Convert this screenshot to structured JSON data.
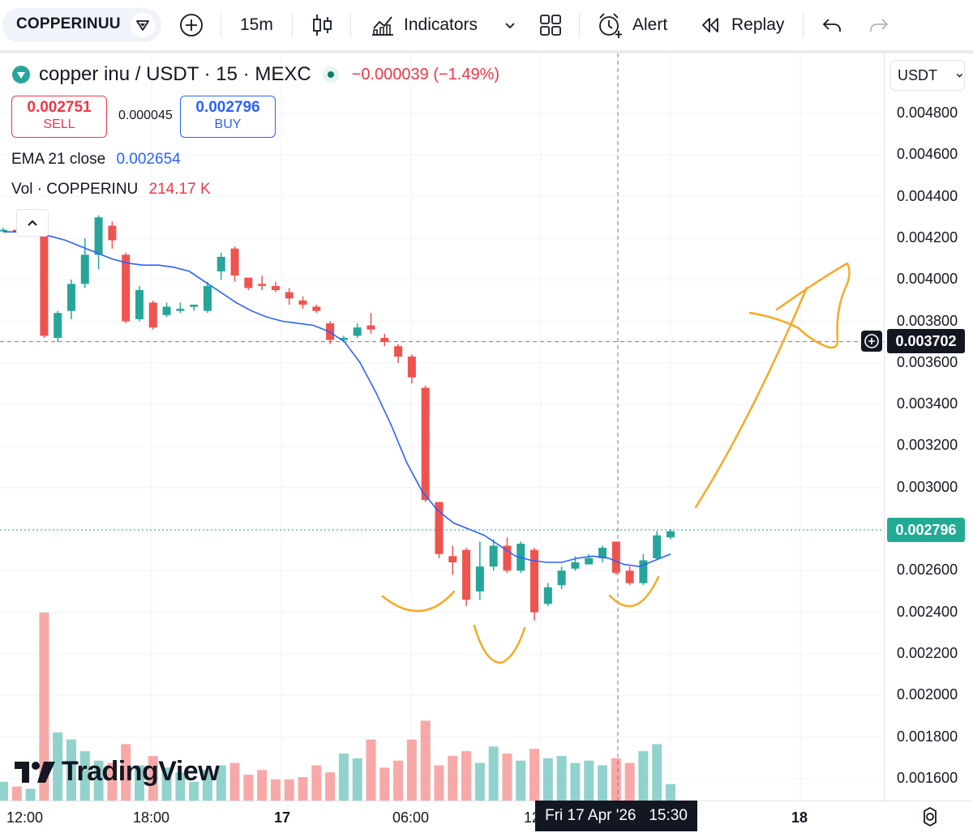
{
  "toolbar": {
    "symbol": "COPPERINUU",
    "interval": "15m",
    "indicators_label": "Indicators",
    "alert_label": "Alert",
    "replay_label": "Replay"
  },
  "legend": {
    "symbol_name": "copper inu",
    "pair_info": " / USDT · 15 · MEXC",
    "change": "−0.000039 (−1.49%)",
    "sell_price": "0.002751",
    "sell_label": "SELL",
    "spread": "0.000045",
    "buy_price": "0.002796",
    "buy_label": "BUY",
    "ema_label": "EMA 21 close",
    "ema_value": "0.002654",
    "vol_label": "Vol · COPPERINU",
    "vol_value": "214.17 K"
  },
  "price_scale": {
    "currency": "USDT",
    "ticks": [
      "0.004800",
      "0.004600",
      "0.004400",
      "0.004200",
      "0.004000",
      "0.003800",
      "0.003600",
      "0.003400",
      "0.003200",
      "0.003000",
      "0.002600",
      "0.002400",
      "0.002200",
      "0.002000",
      "0.001800",
      "0.001600"
    ],
    "crosshair_price": "0.003702",
    "last_price": "0.002796"
  },
  "time_axis": {
    "ticks": [
      "12:00",
      "18:00",
      "17",
      "06:00",
      "12",
      "18"
    ],
    "crosshair_time": "Fri 17 Apr '26   15:30"
  },
  "branding": {
    "logo_text": "TradingView"
  },
  "colors": {
    "up": "#26a69a",
    "down": "#ef5350",
    "ema": "#2962ff",
    "annotation": "#f7a928"
  },
  "chart_data": {
    "type": "candlestick",
    "ema": [
      0.00423,
      0.00423,
      0.00422,
      0.00421,
      0.00419,
      0.00416,
      0.00413,
      0.0041,
      0.00408,
      0.00407,
      0.00407,
      0.00406,
      0.00404,
      0.00399,
      0.00394,
      0.00389,
      0.00385,
      0.00382,
      0.0038,
      0.00379,
      0.00378,
      0.00375,
      0.0037,
      0.0036,
      0.00346,
      0.0033,
      0.00312,
      0.00298,
      0.00289,
      0.00283,
      0.0028,
      0.00277,
      0.00272,
      0.00267,
      0.00265,
      0.00264,
      0.00264,
      0.00266,
      0.00267,
      0.00266,
      0.00263,
      0.00262,
      0.00265,
      0.00268
    ],
    "candles": [
      {
        "o": 0.00424,
        "h": 0.00425,
        "l": 0.00423,
        "c": 0.00424
      },
      {
        "o": 0.00424,
        "h": 0.00425,
        "l": 0.00423,
        "c": 0.00423
      },
      {
        "o": 0.00424,
        "h": 0.00424,
        "l": 0.00424,
        "c": 0.00424
      },
      {
        "o": 0.00424,
        "h": 0.00424,
        "l": 0.00372,
        "c": 0.00373
      },
      {
        "o": 0.00372,
        "h": 0.00385,
        "l": 0.0037,
        "c": 0.00384
      },
      {
        "o": 0.00385,
        "h": 0.004,
        "l": 0.00381,
        "c": 0.00398
      },
      {
        "o": 0.00398,
        "h": 0.0042,
        "l": 0.00396,
        "c": 0.00412
      },
      {
        "o": 0.00412,
        "h": 0.00431,
        "l": 0.00405,
        "c": 0.0043
      },
      {
        "o": 0.00426,
        "h": 0.00428,
        "l": 0.00415,
        "c": 0.00419
      },
      {
        "o": 0.00412,
        "h": 0.00413,
        "l": 0.00379,
        "c": 0.0038
      },
      {
        "o": 0.00381,
        "h": 0.00397,
        "l": 0.0038,
        "c": 0.00395
      },
      {
        "o": 0.00389,
        "h": 0.0039,
        "l": 0.00376,
        "c": 0.00377
      },
      {
        "o": 0.00383,
        "h": 0.00389,
        "l": 0.00382,
        "c": 0.00387
      },
      {
        "o": 0.00385,
        "h": 0.00389,
        "l": 0.00384,
        "c": 0.00386
      },
      {
        "o": 0.00387,
        "h": 0.00388,
        "l": 0.00385,
        "c": 0.00388
      },
      {
        "o": 0.00385,
        "h": 0.00399,
        "l": 0.00384,
        "c": 0.00397
      },
      {
        "o": 0.00404,
        "h": 0.00413,
        "l": 0.004,
        "c": 0.00411
      },
      {
        "o": 0.00415,
        "h": 0.00416,
        "l": 0.00399,
        "c": 0.00402
      },
      {
        "o": 0.00401,
        "h": 0.00401,
        "l": 0.00395,
        "c": 0.00396
      },
      {
        "o": 0.00398,
        "h": 0.00402,
        "l": 0.00395,
        "c": 0.00397
      },
      {
        "o": 0.00397,
        "h": 0.00399,
        "l": 0.00394,
        "c": 0.00395
      },
      {
        "o": 0.00394,
        "h": 0.00396,
        "l": 0.00388,
        "c": 0.00391
      },
      {
        "o": 0.0039,
        "h": 0.00392,
        "l": 0.00386,
        "c": 0.00388
      },
      {
        "o": 0.00387,
        "h": 0.00388,
        "l": 0.00384,
        "c": 0.00385
      },
      {
        "o": 0.00379,
        "h": 0.0038,
        "l": 0.00369,
        "c": 0.00371
      },
      {
        "o": 0.00371,
        "h": 0.00373,
        "l": 0.0037,
        "c": 0.00372
      },
      {
        "o": 0.00373,
        "h": 0.00379,
        "l": 0.00372,
        "c": 0.00377
      },
      {
        "o": 0.00378,
        "h": 0.00384,
        "l": 0.00374,
        "c": 0.00376
      },
      {
        "o": 0.00372,
        "h": 0.00374,
        "l": 0.00368,
        "c": 0.0037
      },
      {
        "o": 0.00368,
        "h": 0.00369,
        "l": 0.0036,
        "c": 0.00363
      },
      {
        "o": 0.00363,
        "h": 0.00364,
        "l": 0.0035,
        "c": 0.00353
      },
      {
        "o": 0.00348,
        "h": 0.00349,
        "l": 0.00293,
        "c": 0.00294
      },
      {
        "o": 0.00293,
        "h": 0.00293,
        "l": 0.00266,
        "c": 0.00268
      },
      {
        "o": 0.00267,
        "h": 0.00272,
        "l": 0.00258,
        "c": 0.00264
      },
      {
        "o": 0.0027,
        "h": 0.00271,
        "l": 0.00243,
        "c": 0.00246
      },
      {
        "o": 0.0025,
        "h": 0.00274,
        "l": 0.00246,
        "c": 0.00262
      },
      {
        "o": 0.00262,
        "h": 0.00275,
        "l": 0.0026,
        "c": 0.00272
      },
      {
        "o": 0.00272,
        "h": 0.00276,
        "l": 0.00259,
        "c": 0.0026
      },
      {
        "o": 0.0026,
        "h": 0.00274,
        "l": 0.00259,
        "c": 0.00273
      },
      {
        "o": 0.0027,
        "h": 0.00271,
        "l": 0.00236,
        "c": 0.0024
      },
      {
        "o": 0.00244,
        "h": 0.00254,
        "l": 0.00243,
        "c": 0.00252
      },
      {
        "o": 0.00253,
        "h": 0.00262,
        "l": 0.00251,
        "c": 0.0026
      },
      {
        "o": 0.00261,
        "h": 0.00267,
        "l": 0.0026,
        "c": 0.00264
      },
      {
        "o": 0.00263,
        "h": 0.00268,
        "l": 0.00263,
        "c": 0.00266
      },
      {
        "o": 0.00266,
        "h": 0.00272,
        "l": 0.00264,
        "c": 0.00271
      },
      {
        "o": 0.00274,
        "h": 0.00274,
        "l": 0.00258,
        "c": 0.00259
      },
      {
        "o": 0.0026,
        "h": 0.00262,
        "l": 0.00253,
        "c": 0.00254
      },
      {
        "o": 0.00254,
        "h": 0.00268,
        "l": 0.00253,
        "c": 0.00265
      },
      {
        "o": 0.00266,
        "h": 0.00279,
        "l": 0.00265,
        "c": 0.00277
      },
      {
        "o": 0.00276,
        "h": 0.0028,
        "l": 0.00275,
        "c": 0.00279
      }
    ],
    "volume": [
      0.8,
      0.6,
      0.5,
      8.0,
      2.9,
      2.6,
      2.1,
      1.7,
      1.6,
      2.4,
      1.5,
      1.9,
      1.4,
      1.2,
      0.8,
      1.3,
      1.5,
      1.6,
      1.1,
      1.3,
      0.9,
      0.9,
      1.0,
      1.5,
      1.2,
      2.0,
      1.8,
      2.6,
      1.4,
      1.7,
      2.6,
      3.4,
      1.5,
      1.9,
      2.1,
      1.6,
      2.3,
      2.0,
      1.7,
      2.2,
      1.8,
      1.9,
      1.6,
      1.7,
      1.5,
      1.8,
      1.6,
      2.1,
      2.4,
      0.7
    ],
    "ylim": [
      0.0015,
      0.0049
    ],
    "annotations": "hand-drawn inverse head and shoulders with upward arrow"
  }
}
